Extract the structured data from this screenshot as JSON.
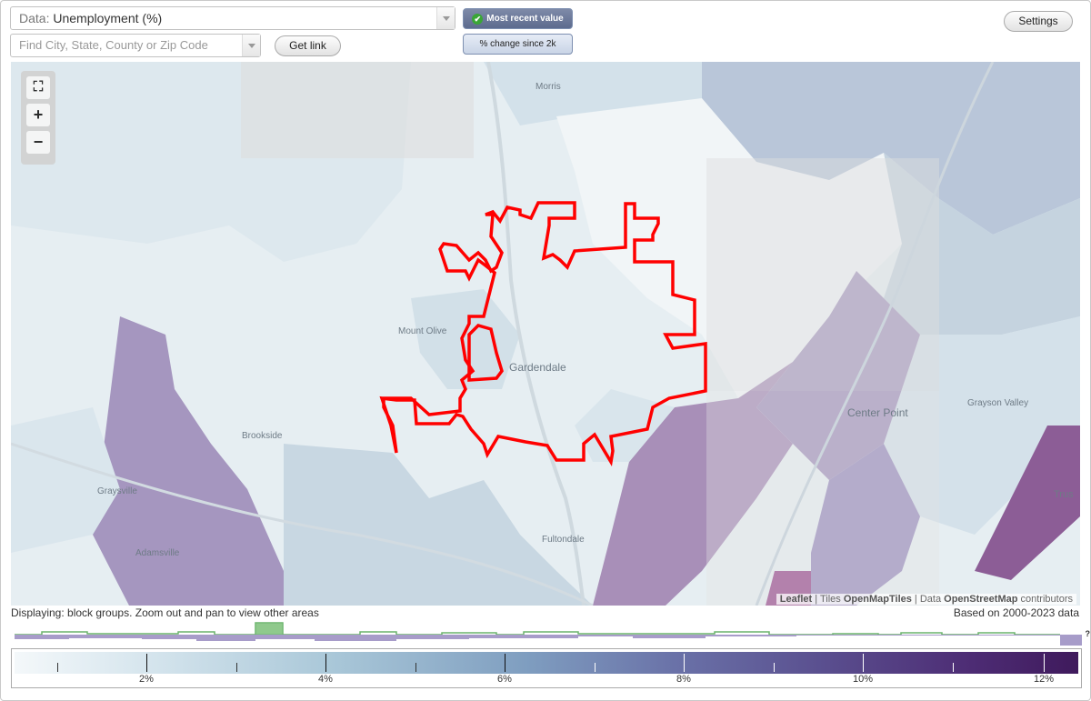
{
  "dataset": {
    "label": "Data:",
    "value": "Unemployment (%)"
  },
  "search": {
    "placeholder": "Find City, State, County or Zip Code"
  },
  "buttons": {
    "get_link": "Get link",
    "settings": "Settings"
  },
  "toggles": {
    "recent": "Most recent value",
    "change": "% change since 2k"
  },
  "zoom": {
    "fit": "⛶",
    "zoom_in": "+",
    "zoom_out": "−"
  },
  "places": [
    {
      "name": "Morris"
    },
    {
      "name": "Mount Olive"
    },
    {
      "name": "Gardendale"
    },
    {
      "name": "Brookside"
    },
    {
      "name": "Graysville"
    },
    {
      "name": "Adamsville"
    },
    {
      "name": "Fultondale"
    },
    {
      "name": "Center Point"
    },
    {
      "name": "Grayson Valley"
    },
    {
      "name": "Trus"
    }
  ],
  "attribution": {
    "leaflet": "Leaflet",
    "tiles_prefix": "Tiles",
    "tiles": "OpenMapTiles",
    "data_prefix": "Data",
    "data": "OpenStreetMap",
    "suffix": "contributors"
  },
  "status": {
    "displaying": "Displaying: block groups. Zoom out and pan to view other areas",
    "based_on": "Based on 2000-2023 data"
  },
  "histogram": {
    "unknown": "?"
  },
  "legend": {
    "unit": "%",
    "ticks": [
      "2%",
      "4%",
      "6%",
      "8%",
      "10%",
      "12%"
    ],
    "colors": [
      "#f4f8fa",
      "#a9c7d8",
      "#7f9ec0",
      "#6a72a8",
      "#5a4f8f",
      "#3f1a5c"
    ]
  },
  "colors": {
    "boundary": "#ff0000",
    "highlight_bar": "#8fc98c",
    "histo_purple": "#a79cc9",
    "histo_green": "#6ab36b"
  }
}
